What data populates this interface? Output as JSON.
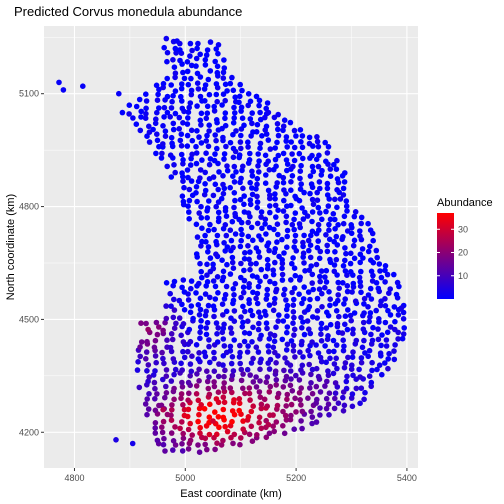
{
  "chart_data": {
    "type": "scatter",
    "title": "Predicted Corvus monedula abundance",
    "xlabel": "East coordinate (km)",
    "ylabel": "North coordinate (km)",
    "xlim": [
      4745,
      5420
    ],
    "ylim": [
      4105,
      5280
    ],
    "x_ticks": [
      4800,
      5000,
      5200,
      5400
    ],
    "y_ticks": [
      4200,
      4500,
      4800,
      5100
    ],
    "grid": true,
    "legend": {
      "title": "Abundance",
      "placement": "right",
      "ticks": [
        10,
        20,
        30
      ],
      "range": [
        0,
        37
      ],
      "low_color": "#0000ff",
      "high_color": "#ff0000"
    },
    "background_color": "#ebebeb",
    "grid_color": "#ffffff",
    "point_sample": [
      {
        "x": 4772,
        "y": 5130,
        "abundance": 1
      },
      {
        "x": 4780,
        "y": 5110,
        "abundance": 1
      },
      {
        "x": 4815,
        "y": 5120,
        "abundance": 1
      },
      {
        "x": 4880,
        "y": 5100,
        "abundance": 1
      },
      {
        "x": 4985,
        "y": 5240,
        "abundance": 1
      },
      {
        "x": 5060,
        "y": 5230,
        "abundance": 1
      },
      {
        "x": 5150,
        "y": 5050,
        "abundance": 2
      },
      {
        "x": 5280,
        "y": 4820,
        "abundance": 2
      },
      {
        "x": 5390,
        "y": 4530,
        "abundance": 3
      },
      {
        "x": 4920,
        "y": 4490,
        "abundance": 18
      },
      {
        "x": 4960,
        "y": 4260,
        "abundance": 26
      },
      {
        "x": 5050,
        "y": 4230,
        "abundance": 30
      },
      {
        "x": 5150,
        "y": 4220,
        "abundance": 26
      },
      {
        "x": 4875,
        "y": 4180,
        "abundance": 4
      },
      {
        "x": 4905,
        "y": 4170,
        "abundance": 3
      }
    ]
  }
}
